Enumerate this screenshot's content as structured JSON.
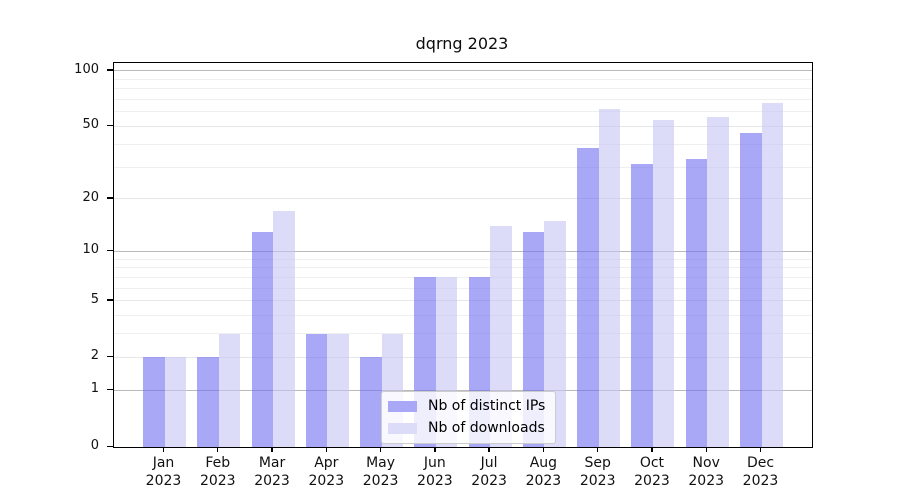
{
  "figure": {
    "title": "dqrng 2023",
    "background": "#ffffff"
  },
  "chart_data": {
    "type": "bar",
    "title": "dqrng 2023",
    "x_categories": [
      "Jan",
      "Feb",
      "Mar",
      "Apr",
      "May",
      "Jun",
      "Jul",
      "Aug",
      "Sep",
      "Oct",
      "Nov",
      "Dec"
    ],
    "x_year": "2023",
    "series": [
      {
        "name": "Nb of distinct IPs",
        "color": "rgba(110,110,240,0.6)",
        "solid_color": "#a8a8f6",
        "values": [
          2,
          2,
          13,
          3,
          2,
          7,
          7,
          13,
          38,
          31,
          33,
          46
        ]
      },
      {
        "name": "Nb of downloads",
        "color": "rgba(197,197,245,0.6)",
        "solid_color": "#dcdcf9",
        "values": [
          2,
          3,
          17,
          3,
          3,
          7,
          14,
          15,
          62,
          54,
          56,
          67
        ]
      }
    ],
    "yscale": "log1p",
    "ylim": [
      0,
      110
    ],
    "yticks": [
      0,
      1,
      2,
      5,
      10,
      20,
      50,
      100
    ],
    "yticks_minor": [
      3,
      4,
      6,
      7,
      8,
      9,
      30,
      40,
      60,
      70,
      80,
      90
    ],
    "grid": true,
    "grid_color_power10": "#bababa",
    "grid_color_other": "#e7e7e7",
    "legend_position": "lower-center"
  }
}
